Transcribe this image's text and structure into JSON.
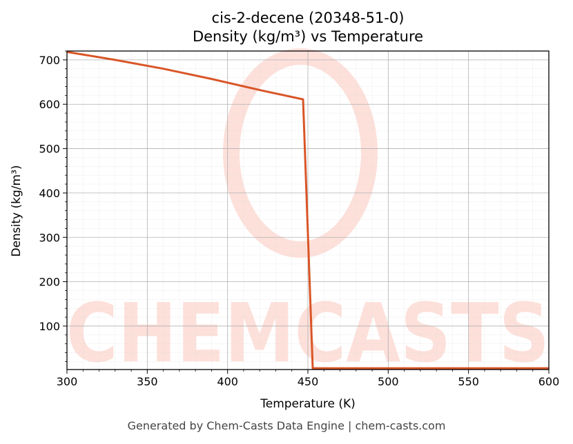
{
  "chart_data": {
    "type": "line",
    "title": "cis-2-decene (20348-51-0)",
    "subtitle": "Density (kg/m³) vs Temperature",
    "xlabel": "Temperature (K)",
    "ylabel": "Density (kg/m³)",
    "xlim": [
      300,
      600
    ],
    "ylim": [
      2,
      720
    ],
    "x_ticks": [
      300,
      350,
      400,
      450,
      500,
      550,
      600
    ],
    "y_ticks": [
      100,
      200,
      300,
      400,
      500,
      600,
      700
    ],
    "grid": true,
    "line_color": "#d95527",
    "series": [
      {
        "x": [
          300,
          330,
          360,
          390,
          420,
          447,
          453,
          600
        ],
        "y": [
          718,
          700,
          680,
          657,
          632,
          611,
          5,
          5
        ]
      }
    ]
  },
  "watermark": {
    "text": "CHEMCASTS",
    "color": "#fde0da"
  },
  "footer": "Generated by Chem-Casts Data Engine | chem-casts.com"
}
